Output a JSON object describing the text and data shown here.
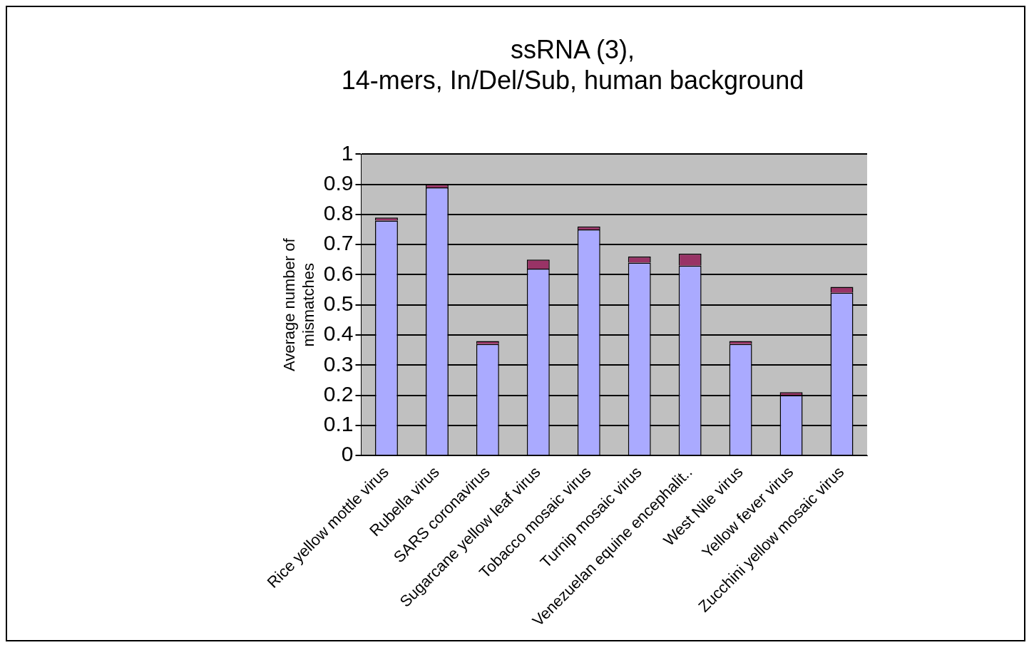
{
  "chart_data": {
    "type": "bar",
    "title": "ssRNA (3),\n14-mers, In/Del/Sub, human background",
    "ylabel": "Average number of\nmismatches",
    "categories": [
      "Rice yellow mottle virus",
      "Rubella virus",
      "SARS coronavirus",
      "Sugarcane yellow leaf virus",
      "Tobacco mosaic virus",
      "Turnip mosaic virus",
      "Venezuelan equine encephalit..",
      "West Nile virus",
      "Yellow fever virus",
      "Zucchini yellow mosaic virus"
    ],
    "stacked": true,
    "series": [
      {
        "color": "#aaaaff",
        "values": [
          0.78,
          0.89,
          0.37,
          0.62,
          0.75,
          0.64,
          0.63,
          0.37,
          0.2,
          0.54
        ]
      },
      {
        "color": "#993366",
        "values": [
          0.01,
          0.01,
          0.01,
          0.03,
          0.01,
          0.02,
          0.04,
          0.01,
          0.01,
          0.02
        ]
      }
    ],
    "ylim": [
      0,
      1
    ],
    "yticks": [
      0,
      0.1,
      0.2,
      0.3,
      0.4,
      0.5,
      0.6,
      0.7,
      0.8,
      0.9,
      1
    ],
    "grid": "y",
    "legend": false
  }
}
